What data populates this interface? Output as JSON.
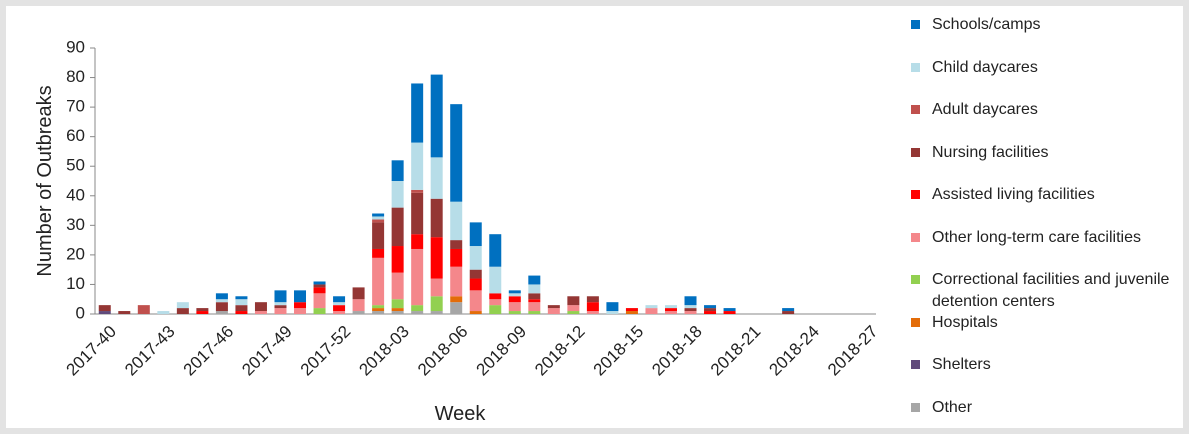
{
  "chart_data": {
    "type": "stacked-bar",
    "x_label": "Week",
    "y_label": "Number of Outbreaks",
    "categories": [
      "2017-40",
      null,
      null,
      "2017-43",
      null,
      null,
      "2017-46",
      null,
      null,
      "2017-49",
      null,
      null,
      "2017-52",
      null,
      null,
      "2018-03",
      null,
      null,
      "2018-06",
      null,
      null,
      "2018-09",
      null,
      null,
      "2018-12",
      null,
      null,
      "2018-15",
      null,
      null,
      "2018-18",
      null,
      null,
      "2018-21",
      null,
      null,
      "2018-24",
      null,
      null,
      "2018-27"
    ],
    "ylim": [
      0,
      90
    ],
    "yticks": [
      0,
      10,
      20,
      30,
      40,
      50,
      60,
      70,
      80,
      90
    ],
    "series": [
      {
        "name": "Schools/camps",
        "color": "#0070c0",
        "values": [
          0,
          0,
          0,
          0,
          0,
          0,
          2,
          1,
          0,
          4,
          4,
          1,
          2,
          0,
          1,
          7,
          20,
          28,
          33,
          8,
          11,
          1,
          3,
          0,
          0,
          0,
          3,
          0,
          0,
          0,
          3,
          1,
          1,
          0,
          0,
          1,
          0,
          0,
          0,
          0
        ]
      },
      {
        "name": "Child daycares",
        "color": "#b7dde8",
        "values": [
          0,
          0,
          0,
          1,
          2,
          0,
          1,
          2,
          0,
          1,
          0,
          0,
          1,
          0,
          1,
          9,
          16,
          14,
          13,
          8,
          9,
          1,
          3,
          0,
          0,
          0,
          1,
          0,
          1,
          1,
          1,
          0,
          0,
          0,
          0,
          0,
          0,
          0,
          0,
          0
        ]
      },
      {
        "name": "Adult daycares",
        "color": "#c0504d",
        "values": [
          0,
          0,
          3,
          0,
          0,
          0,
          0,
          0,
          0,
          0,
          0,
          0,
          0,
          0,
          1,
          0,
          1,
          0,
          0,
          0,
          0,
          0,
          0,
          0,
          0,
          0,
          0,
          0,
          0,
          0,
          0,
          0,
          0,
          0,
          0,
          0,
          0,
          0,
          0,
          0
        ]
      },
      {
        "name": "Nursing facilities",
        "color": "#943634",
        "values": [
          2,
          1,
          0,
          0,
          2,
          1,
          3,
          2,
          3,
          1,
          0,
          1,
          0,
          4,
          9,
          13,
          14,
          13,
          3,
          3,
          0,
          0,
          2,
          1,
          3,
          2,
          0,
          0,
          0,
          0,
          1,
          1,
          0,
          0,
          0,
          1,
          0,
          0,
          0,
          0
        ]
      },
      {
        "name": "Assisted living facilities",
        "color": "#ff0000",
        "values": [
          0,
          0,
          0,
          0,
          0,
          1,
          0,
          1,
          0,
          0,
          2,
          2,
          2,
          0,
          3,
          9,
          5,
          14,
          6,
          4,
          2,
          2,
          1,
          0,
          0,
          3,
          0,
          1,
          0,
          1,
          0,
          1,
          1,
          0,
          0,
          0,
          0,
          0,
          0,
          0
        ]
      },
      {
        "name": "Other long-term care facilities",
        "color": "#f4878b",
        "values": [
          0,
          0,
          0,
          0,
          0,
          0,
          0,
          0,
          1,
          2,
          2,
          5,
          1,
          4,
          16,
          9,
          19,
          6,
          10,
          7,
          2,
          3,
          3,
          2,
          2,
          1,
          0,
          0,
          2,
          1,
          1,
          0,
          0,
          0,
          0,
          0,
          0,
          0,
          0,
          0
        ]
      },
      {
        "name": "Correctional facilities and juvenile detention centers",
        "color": "#92d050",
        "values": [
          0,
          0,
          0,
          0,
          0,
          0,
          0,
          0,
          0,
          0,
          0,
          2,
          0,
          0,
          1,
          3,
          2,
          5,
          0,
          0,
          3,
          1,
          1,
          0,
          1,
          0,
          0,
          0,
          0,
          0,
          0,
          0,
          0,
          0,
          0,
          0,
          0,
          0,
          0,
          0
        ]
      },
      {
        "name": "Hospitals",
        "color": "#e36c09",
        "values": [
          0,
          0,
          0,
          0,
          0,
          0,
          0,
          0,
          0,
          0,
          0,
          0,
          0,
          0,
          1,
          1,
          0,
          0,
          2,
          1,
          0,
          0,
          0,
          0,
          0,
          0,
          0,
          1,
          0,
          0,
          0,
          0,
          0,
          0,
          0,
          0,
          0,
          0,
          0,
          0
        ]
      },
      {
        "name": "Shelters",
        "color": "#604a7b",
        "values": [
          1,
          0,
          0,
          0,
          0,
          0,
          0,
          0,
          0,
          0,
          0,
          0,
          0,
          0,
          0,
          0,
          0,
          0,
          0,
          0,
          0,
          0,
          0,
          0,
          0,
          0,
          0,
          0,
          0,
          0,
          0,
          0,
          0,
          0,
          0,
          0,
          0,
          0,
          0,
          0
        ]
      },
      {
        "name": "Other",
        "color": "#a6a6a6",
        "values": [
          0,
          0,
          0,
          0,
          0,
          0,
          1,
          0,
          0,
          0,
          0,
          0,
          0,
          1,
          1,
          1,
          1,
          1,
          4,
          0,
          0,
          0,
          0,
          0,
          0,
          0,
          0,
          0,
          0,
          0,
          0,
          0,
          0,
          0,
          0,
          0,
          0,
          0,
          0,
          0
        ]
      }
    ]
  }
}
